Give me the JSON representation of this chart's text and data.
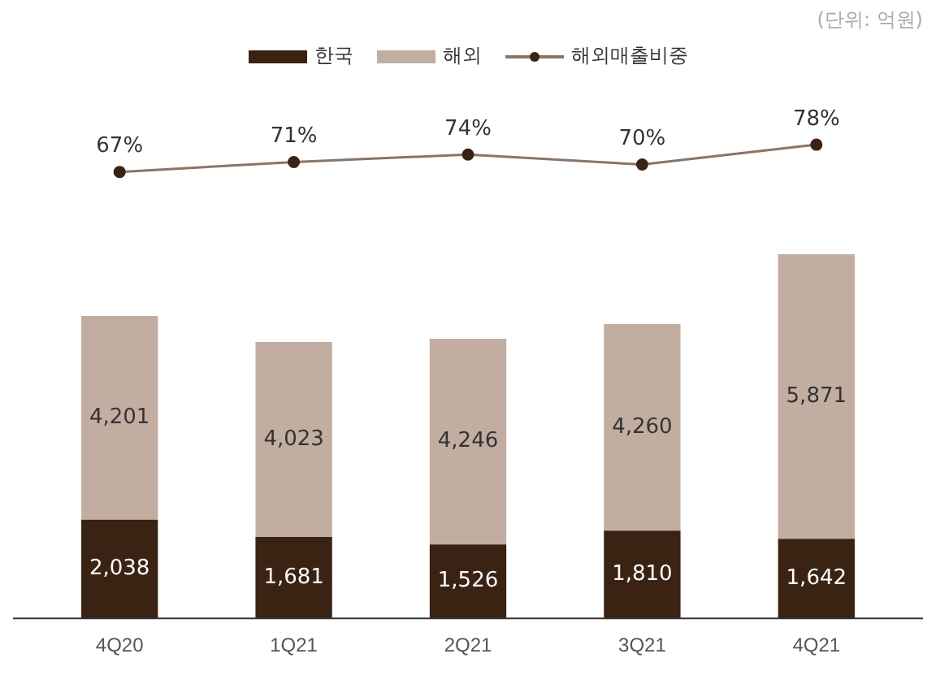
{
  "chart_data": [
    {
      "type": "line",
      "categories": [
        null,
        null,
        null,
        null,
        null
      ],
      "series": [
        {
          "name": "해외매출비중",
          "color": "#8a7466",
          "values": [
            67,
            71,
            74,
            70,
            78
          ],
          "value_labels": [
            "67%",
            "71%",
            "74%",
            "70%",
            "78%"
          ]
        }
      ],
      "data_labels": true,
      "legend": "top",
      "marker": "circle",
      "line_style": "solid",
      "grid": false,
      "tick_labels": false,
      "annotations": [
        "(단위: 억원)"
      ]
    },
    {
      "type": "bar",
      "stacked": true,
      "categories": [
        "4Q20",
        "1Q21",
        "2Q21",
        "3Q21",
        "4Q21"
      ],
      "series": [
        {
          "name": "한국",
          "color": "#3b2314",
          "values": [
            2038,
            1681,
            1526,
            1810,
            1642
          ],
          "value_labels": [
            "2,038",
            "1,681",
            "1,526",
            "1,810",
            "1,642"
          ]
        },
        {
          "name": "해외",
          "color": "#c2ada1",
          "values": [
            4201,
            4023,
            4246,
            4260,
            5871
          ],
          "value_labels": [
            "4,201",
            "4,023",
            "4,246",
            "4,260",
            "5,871"
          ]
        }
      ],
      "data_labels": true,
      "legend": "top",
      "grid": false,
      "tick_labels": "x"
    }
  ]
}
